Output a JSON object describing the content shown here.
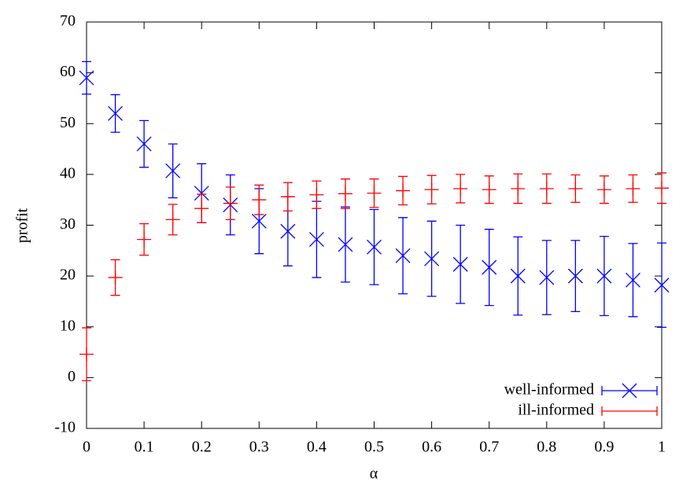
{
  "chart_data": {
    "type": "errorbar",
    "x_label": "α",
    "y_label": "profit",
    "x": [
      0,
      0.05,
      0.1,
      0.15,
      0.2,
      0.25,
      0.3,
      0.35,
      0.4,
      0.45,
      0.5,
      0.55,
      0.6,
      0.65,
      0.7,
      0.75,
      0.8,
      0.85,
      0.9,
      0.95,
      1
    ],
    "series": [
      {
        "name": "well-informed",
        "color": "#0000ff",
        "marker": "x",
        "values": [
          59,
          52,
          46,
          40.7,
          36.3,
          34,
          30.8,
          28.8,
          27.2,
          26.2,
          25.7,
          24,
          23.4,
          22.3,
          21.7,
          20,
          19.7,
          20,
          20,
          19.2,
          18.2
        ],
        "errors": [
          3.2,
          3.7,
          4.6,
          5.3,
          5.8,
          5.9,
          6.4,
          6.8,
          7.5,
          7.4,
          7.4,
          7.5,
          7.4,
          7.7,
          7.5,
          7.7,
          7.3,
          7,
          7.8,
          7.2,
          8.3
        ]
      },
      {
        "name": "ill-informed",
        "color": "#ff0000",
        "marker": "+",
        "values": [
          4.6,
          19.7,
          27.2,
          31.1,
          33.3,
          34.3,
          35,
          35.6,
          36,
          36.2,
          36.3,
          36.8,
          37,
          37.2,
          37,
          37.2,
          37.2,
          37.2,
          37,
          37.2,
          37.3
        ],
        "errors": [
          5.2,
          3.5,
          3.1,
          3,
          2.8,
          3.2,
          2.9,
          2.8,
          2.7,
          2.9,
          2.8,
          2.8,
          2.8,
          2.8,
          2.7,
          2.9,
          2.9,
          2.7,
          2.7,
          2.7,
          3
        ]
      }
    ],
    "xlim": [
      0,
      1
    ],
    "xticks": [
      0,
      0.1,
      0.2,
      0.3,
      0.4,
      0.5,
      0.6,
      0.7,
      0.8,
      0.9,
      1
    ],
    "ylim": [
      -10,
      70
    ],
    "yticks": [
      -10,
      0,
      10,
      20,
      30,
      40,
      50,
      60,
      70
    ],
    "legend": "lower right"
  }
}
